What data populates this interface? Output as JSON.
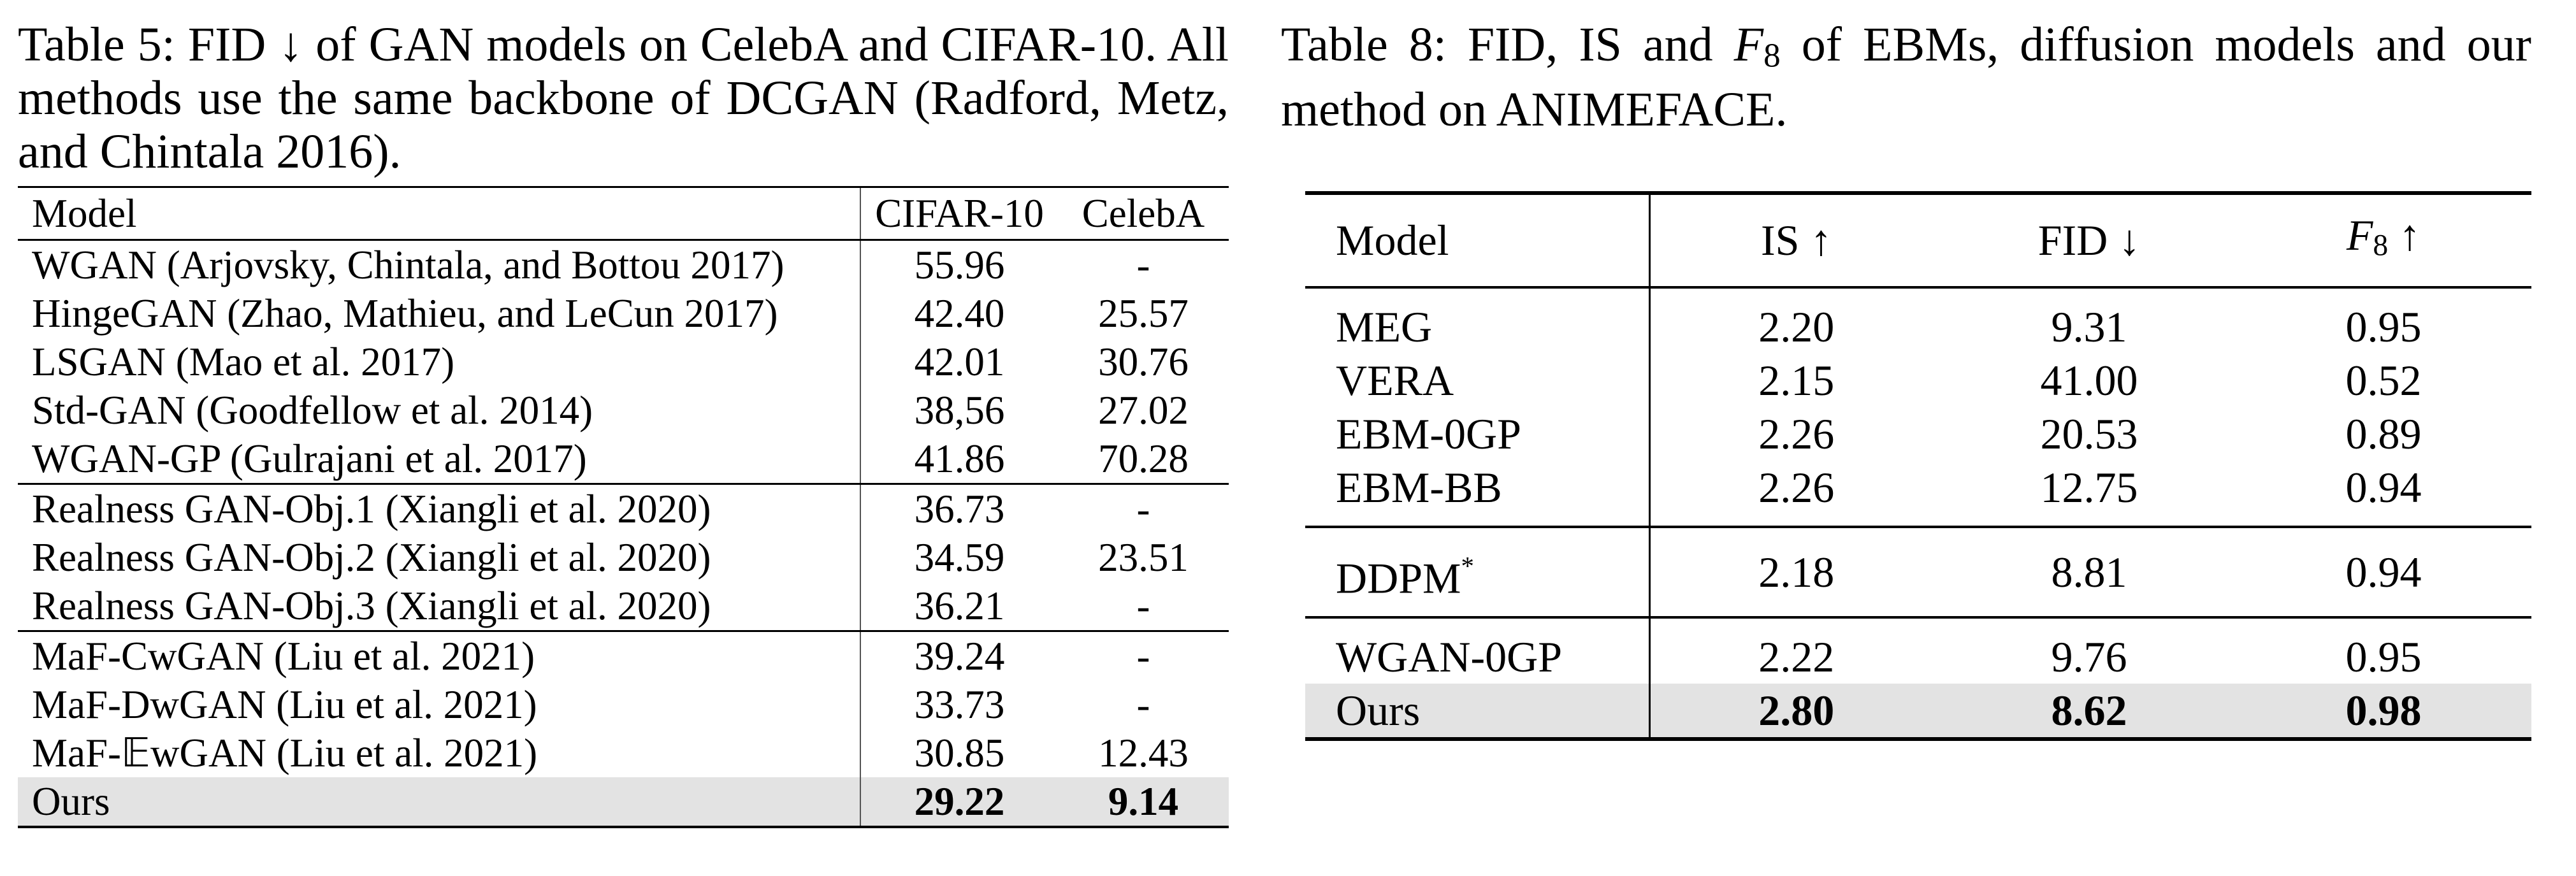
{
  "table5": {
    "caption": "Table 5: FID ↓ of GAN models on CelebA and CIFAR-10. All methods use the same backbone of DCGAN (Radford, Metz, and Chintala 2016).",
    "headers": [
      "Model",
      "CIFAR-10",
      "CelebA"
    ],
    "groups": [
      [
        [
          "WGAN (Arjovsky, Chintala, and Bottou 2017)",
          "55.96",
          "-"
        ],
        [
          "HingeGAN (Zhao, Mathieu, and LeCun 2017)",
          "42.40",
          "25.57"
        ],
        [
          "LSGAN (Mao et al. 2017)",
          "42.01",
          "30.76"
        ],
        [
          "Std-GAN (Goodfellow et al. 2014)",
          "38,56",
          "27.02"
        ],
        [
          "WGAN-GP (Gulrajani et al. 2017)",
          "41.86",
          "70.28"
        ]
      ],
      [
        [
          "Realness GAN-Obj.1 (Xiangli et al. 2020)",
          "36.73",
          "-"
        ],
        [
          "Realness GAN-Obj.2 (Xiangli et al. 2020)",
          "34.59",
          "23.51"
        ],
        [
          "Realness GAN-Obj.3 (Xiangli et al. 2020)",
          "36.21",
          "-"
        ]
      ],
      [
        [
          "MaF-CwGAN (Liu et al. 2021)",
          "39.24",
          "-"
        ],
        [
          "MaF-DwGAN (Liu et al. 2021)",
          "33.73",
          "-"
        ],
        [
          "MaF-𝔼wGAN (Liu et al. 2021)",
          "30.85",
          "12.43"
        ],
        [
          "Ours",
          "29.22",
          "9.14"
        ]
      ]
    ]
  },
  "table8": {
    "caption_prefix": "Table 8: FID, IS and ",
    "caption_f": "F",
    "caption_sub": "8",
    "caption_suffix": " of EBMs, diffusion models and our method on ANIMEFACE.",
    "headers": {
      "model": "Model",
      "is": "IS ↑",
      "fid": "FID ↓",
      "f_letter": "F",
      "f_sub": "8",
      "f_arrow": " ↑"
    },
    "groups": [
      [
        [
          "MEG",
          "2.20",
          "9.31",
          "0.95"
        ],
        [
          "VERA",
          "2.15",
          "41.00",
          "0.52"
        ],
        [
          "EBM-0GP",
          "2.26",
          "20.53",
          "0.89"
        ],
        [
          "EBM-BB",
          "2.26",
          "12.75",
          "0.94"
        ]
      ],
      [
        [
          "DDPM",
          "2.18",
          "8.81",
          "0.94"
        ]
      ],
      [
        [
          "WGAN-0GP",
          "2.22",
          "9.76",
          "0.95"
        ],
        [
          "Ours",
          "2.80",
          "8.62",
          "0.98"
        ]
      ]
    ],
    "ddpm_mark": "*"
  }
}
